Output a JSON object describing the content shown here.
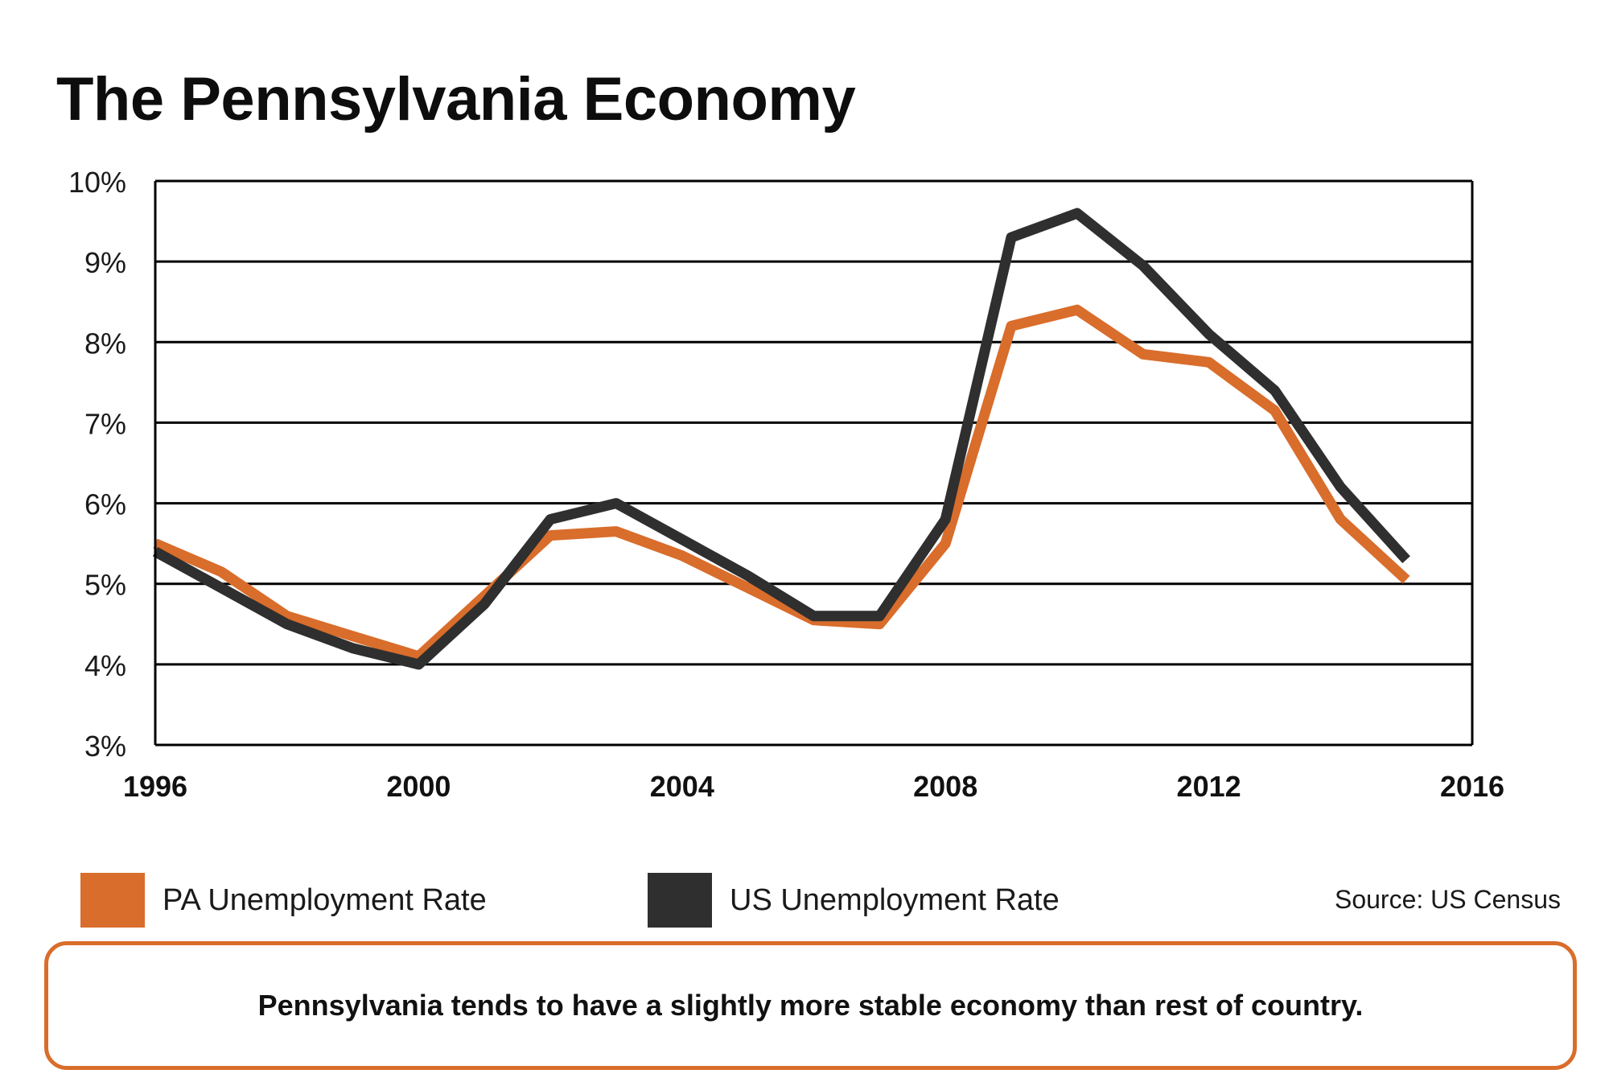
{
  "page": {
    "title": "The Pennsylvania Economy",
    "source": "Source: US Census",
    "callout": "Pennsylvania tends to have a slightly more stable economy than rest of country."
  },
  "legend": {
    "items": [
      {
        "label": "PA Unemployment Rate",
        "color": "#d96d2b"
      },
      {
        "label": "US Unemployment Rate",
        "color": "#2f2f2f"
      }
    ]
  },
  "colors": {
    "accent": "#d96d2b",
    "dark": "#2f2f2f",
    "grid": "#000000"
  },
  "chart_data": {
    "type": "line",
    "title": "The Pennsylvania Economy",
    "xlabel": "",
    "ylabel": "",
    "xlim": [
      1996,
      2016
    ],
    "ylim": [
      3,
      10
    ],
    "x_ticks": [
      1996,
      2000,
      2004,
      2008,
      2012,
      2016
    ],
    "y_ticks": [
      3,
      4,
      5,
      6,
      7,
      8,
      9,
      10
    ],
    "y_tick_labels": [
      "3%",
      "4%",
      "5%",
      "6%",
      "7%",
      "8%",
      "9%",
      "10%"
    ],
    "grid": "horizontal",
    "legend_position": "bottom",
    "x": [
      1996,
      1997,
      1998,
      1999,
      2000,
      2001,
      2002,
      2003,
      2004,
      2005,
      2006,
      2007,
      2008,
      2009,
      2010,
      2011,
      2012,
      2013,
      2014,
      2015
    ],
    "series": [
      {
        "name": "PA Unemployment Rate",
        "color": "#d96d2b",
        "values": [
          5.5,
          5.15,
          4.6,
          4.35,
          4.1,
          4.85,
          5.6,
          5.65,
          5.35,
          4.95,
          4.55,
          4.5,
          5.5,
          8.2,
          8.4,
          7.85,
          7.75,
          7.15,
          5.8,
          5.05
        ]
      },
      {
        "name": "US Unemployment Rate",
        "color": "#2f2f2f",
        "values": [
          5.4,
          4.95,
          4.5,
          4.2,
          4.0,
          4.75,
          5.8,
          6.0,
          5.55,
          5.1,
          4.6,
          4.6,
          5.8,
          9.3,
          9.6,
          8.95,
          8.1,
          7.4,
          6.2,
          5.3
        ]
      }
    ]
  }
}
